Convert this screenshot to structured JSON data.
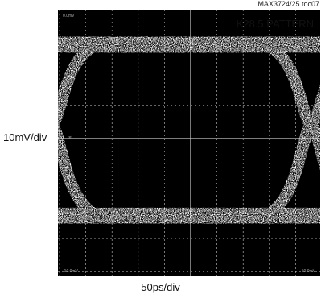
{
  "figure": {
    "id_label": "MAX3724/25 toc07"
  },
  "chart_data": {
    "type": "eye_diagram",
    "title": "K28.5 PATTERN",
    "xlabel": "50ps/div",
    "ylabel": "10mV/div",
    "x_divisions": 10,
    "y_divisions": 8,
    "grid": true,
    "title_position": "top-right",
    "screen_corner_labels": [
      "0.0mV",
      "-10.0mV",
      "50.0mV",
      "ref"
    ],
    "eye": {
      "crossing_x_div": [
        -5.3,
        4.6
      ],
      "crossing_level_div": 0.4,
      "high_level_div": 2.9,
      "low_level_div": -2.4,
      "trace_thickness_div": 0.35
    },
    "colors": {
      "screen_background": "#000000",
      "grid": "#c9c9c9",
      "trace": "#ffffff",
      "text": "#111111"
    }
  }
}
